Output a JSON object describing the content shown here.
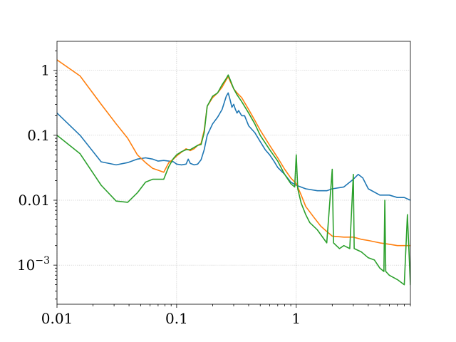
{
  "chart_data": {
    "type": "line",
    "title": "",
    "xlabel": "",
    "ylabel": "",
    "xscale": "log",
    "yscale": "log",
    "xlim": [
      0.01,
      9.0
    ],
    "ylim": [
      0.00025,
      2.8
    ],
    "grid": true,
    "x_ticks": [
      {
        "value": 0.01,
        "label": "0.01"
      },
      {
        "value": 0.1,
        "label": "0.1"
      },
      {
        "value": 1,
        "label": "1"
      }
    ],
    "y_ticks": [
      {
        "value": 0.001,
        "label": "10^-3"
      },
      {
        "value": 0.01,
        "label": "0.01"
      },
      {
        "value": 0.1,
        "label": "0.1"
      },
      {
        "value": 1,
        "label": "1"
      }
    ],
    "series": [
      {
        "color": "#1f77b4",
        "points": [
          [
            0.01,
            0.22
          ],
          [
            0.0156,
            0.1
          ],
          [
            0.0234,
            0.039
          ],
          [
            0.0312,
            0.035
          ],
          [
            0.039,
            0.038
          ],
          [
            0.047,
            0.043
          ],
          [
            0.055,
            0.045
          ],
          [
            0.063,
            0.043
          ],
          [
            0.07,
            0.04
          ],
          [
            0.078,
            0.041
          ],
          [
            0.086,
            0.04
          ],
          [
            0.094,
            0.039
          ],
          [
            0.1,
            0.036
          ],
          [
            0.11,
            0.035
          ],
          [
            0.12,
            0.036
          ],
          [
            0.125,
            0.043
          ],
          [
            0.13,
            0.037
          ],
          [
            0.14,
            0.035
          ],
          [
            0.15,
            0.036
          ],
          [
            0.16,
            0.042
          ],
          [
            0.17,
            0.06
          ],
          [
            0.18,
            0.1
          ],
          [
            0.2,
            0.15
          ],
          [
            0.22,
            0.19
          ],
          [
            0.24,
            0.25
          ],
          [
            0.26,
            0.4
          ],
          [
            0.27,
            0.45
          ],
          [
            0.28,
            0.35
          ],
          [
            0.29,
            0.27
          ],
          [
            0.3,
            0.3
          ],
          [
            0.31,
            0.25
          ],
          [
            0.32,
            0.22
          ],
          [
            0.33,
            0.24
          ],
          [
            0.35,
            0.2
          ],
          [
            0.37,
            0.2
          ],
          [
            0.4,
            0.14
          ],
          [
            0.45,
            0.11
          ],
          [
            0.5,
            0.08
          ],
          [
            0.55,
            0.06
          ],
          [
            0.6,
            0.05
          ],
          [
            0.65,
            0.04
          ],
          [
            0.7,
            0.032
          ],
          [
            0.8,
            0.025
          ],
          [
            0.9,
            0.019
          ],
          [
            1.0,
            0.017
          ],
          [
            1.2,
            0.015
          ],
          [
            1.5,
            0.014
          ],
          [
            1.8,
            0.014
          ],
          [
            2.0,
            0.015
          ],
          [
            2.5,
            0.016
          ],
          [
            3.0,
            0.021
          ],
          [
            3.3,
            0.025
          ],
          [
            3.6,
            0.022
          ],
          [
            4.0,
            0.015
          ],
          [
            5.0,
            0.012
          ],
          [
            6.0,
            0.012
          ],
          [
            7.0,
            0.011
          ],
          [
            8.0,
            0.011
          ],
          [
            9.0,
            0.01
          ]
        ]
      },
      {
        "color": "#ff7f0e",
        "points": [
          [
            0.01,
            1.45
          ],
          [
            0.0156,
            0.82
          ],
          [
            0.0234,
            0.3
          ],
          [
            0.0312,
            0.15
          ],
          [
            0.039,
            0.09
          ],
          [
            0.047,
            0.05
          ],
          [
            0.055,
            0.038
          ],
          [
            0.063,
            0.031
          ],
          [
            0.07,
            0.029
          ],
          [
            0.078,
            0.027
          ],
          [
            0.086,
            0.038
          ],
          [
            0.094,
            0.043
          ],
          [
            0.1,
            0.048
          ],
          [
            0.11,
            0.055
          ],
          [
            0.12,
            0.062
          ],
          [
            0.13,
            0.058
          ],
          [
            0.14,
            0.062
          ],
          [
            0.15,
            0.07
          ],
          [
            0.16,
            0.075
          ],
          [
            0.17,
            0.12
          ],
          [
            0.18,
            0.28
          ],
          [
            0.2,
            0.38
          ],
          [
            0.22,
            0.45
          ],
          [
            0.24,
            0.55
          ],
          [
            0.26,
            0.72
          ],
          [
            0.27,
            0.8
          ],
          [
            0.28,
            0.68
          ],
          [
            0.3,
            0.52
          ],
          [
            0.32,
            0.45
          ],
          [
            0.35,
            0.38
          ],
          [
            0.4,
            0.25
          ],
          [
            0.45,
            0.17
          ],
          [
            0.5,
            0.12
          ],
          [
            0.6,
            0.07
          ],
          [
            0.7,
            0.045
          ],
          [
            0.8,
            0.03
          ],
          [
            0.9,
            0.022
          ],
          [
            1.0,
            0.018
          ],
          [
            1.1,
            0.012
          ],
          [
            1.2,
            0.008
          ],
          [
            1.4,
            0.0055
          ],
          [
            1.6,
            0.004
          ],
          [
            1.8,
            0.0033
          ],
          [
            2.0,
            0.0028
          ],
          [
            2.5,
            0.0027
          ],
          [
            3.0,
            0.0027
          ],
          [
            3.5,
            0.0025
          ],
          [
            4.0,
            0.0024
          ],
          [
            5.0,
            0.0022
          ],
          [
            6.0,
            0.0021
          ],
          [
            7.0,
            0.002
          ],
          [
            8.0,
            0.002
          ],
          [
            9.0,
            0.002
          ]
        ]
      },
      {
        "color": "#2ca02c",
        "points": [
          [
            0.01,
            0.1
          ],
          [
            0.0156,
            0.052
          ],
          [
            0.0234,
            0.017
          ],
          [
            0.0312,
            0.0097
          ],
          [
            0.039,
            0.0093
          ],
          [
            0.047,
            0.013
          ],
          [
            0.055,
            0.019
          ],
          [
            0.063,
            0.021
          ],
          [
            0.07,
            0.021
          ],
          [
            0.078,
            0.021
          ],
          [
            0.086,
            0.033
          ],
          [
            0.094,
            0.044
          ],
          [
            0.1,
            0.05
          ],
          [
            0.11,
            0.056
          ],
          [
            0.12,
            0.06
          ],
          [
            0.13,
            0.06
          ],
          [
            0.14,
            0.065
          ],
          [
            0.15,
            0.07
          ],
          [
            0.16,
            0.072
          ],
          [
            0.17,
            0.11
          ],
          [
            0.18,
            0.28
          ],
          [
            0.2,
            0.4
          ],
          [
            0.22,
            0.45
          ],
          [
            0.24,
            0.6
          ],
          [
            0.26,
            0.75
          ],
          [
            0.27,
            0.85
          ],
          [
            0.28,
            0.72
          ],
          [
            0.3,
            0.52
          ],
          [
            0.32,
            0.42
          ],
          [
            0.35,
            0.33
          ],
          [
            0.4,
            0.22
          ],
          [
            0.45,
            0.15
          ],
          [
            0.5,
            0.1
          ],
          [
            0.6,
            0.06
          ],
          [
            0.7,
            0.04
          ],
          [
            0.8,
            0.025
          ],
          [
            0.9,
            0.018
          ],
          [
            0.97,
            0.016
          ],
          [
            1.0,
            0.05
          ],
          [
            1.03,
            0.015
          ],
          [
            1.1,
            0.009
          ],
          [
            1.2,
            0.006
          ],
          [
            1.3,
            0.0045
          ],
          [
            1.5,
            0.0035
          ],
          [
            1.8,
            0.0022
          ],
          [
            2.0,
            0.03
          ],
          [
            2.05,
            0.0022
          ],
          [
            2.3,
            0.0018
          ],
          [
            2.5,
            0.002
          ],
          [
            2.8,
            0.0018
          ],
          [
            3.0,
            0.025
          ],
          [
            3.05,
            0.0018
          ],
          [
            3.5,
            0.0016
          ],
          [
            4.0,
            0.0013
          ],
          [
            4.5,
            0.0012
          ],
          [
            5.0,
            0.0009
          ],
          [
            5.4,
            0.0008
          ],
          [
            5.5,
            0.01
          ],
          [
            5.6,
            0.0008
          ],
          [
            6.0,
            0.0007
          ],
          [
            7.0,
            0.0006
          ],
          [
            8.0,
            0.0005
          ],
          [
            8.5,
            0.006
          ],
          [
            9.0,
            0.0005
          ]
        ]
      }
    ]
  }
}
